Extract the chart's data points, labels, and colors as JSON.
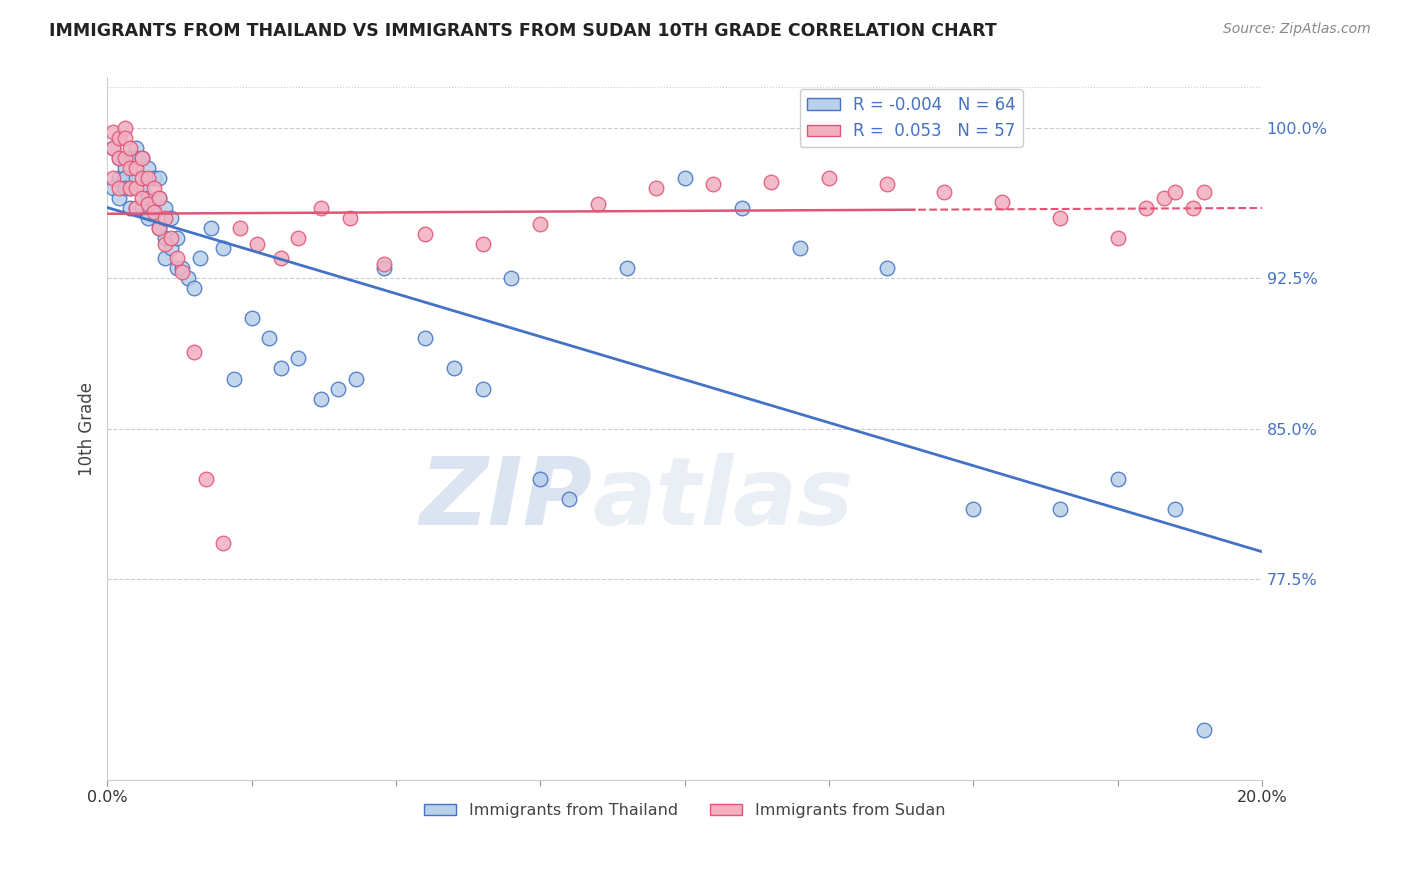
{
  "title": "IMMIGRANTS FROM THAILAND VS IMMIGRANTS FROM SUDAN 10TH GRADE CORRELATION CHART",
  "source": "Source: ZipAtlas.com",
  "ylabel": "10th Grade",
  "x_range": [
    0.0,
    0.2
  ],
  "y_range": [
    0.675,
    1.025
  ],
  "legend_r_thailand": "-0.004",
  "legend_n_thailand": "64",
  "legend_r_sudan": "0.053",
  "legend_n_sudan": "57",
  "thailand_color": "#b8d0e8",
  "sudan_color": "#f2b0c0",
  "thailand_line_color": "#4472c4",
  "sudan_line_color": "#e05575",
  "watermark_zip": "ZIP",
  "watermark_atlas": "atlas",
  "thailand_x": [
    0.001,
    0.001,
    0.002,
    0.002,
    0.002,
    0.003,
    0.003,
    0.003,
    0.004,
    0.004,
    0.004,
    0.005,
    0.005,
    0.005,
    0.005,
    0.006,
    0.006,
    0.006,
    0.007,
    0.007,
    0.007,
    0.008,
    0.008,
    0.009,
    0.009,
    0.009,
    0.01,
    0.01,
    0.01,
    0.011,
    0.011,
    0.012,
    0.012,
    0.013,
    0.014,
    0.015,
    0.016,
    0.018,
    0.02,
    0.022,
    0.025,
    0.028,
    0.03,
    0.033,
    0.037,
    0.04,
    0.043,
    0.048,
    0.055,
    0.06,
    0.065,
    0.07,
    0.075,
    0.08,
    0.09,
    0.1,
    0.11,
    0.12,
    0.135,
    0.15,
    0.165,
    0.175,
    0.185,
    0.19
  ],
  "thailand_y": [
    0.99,
    0.97,
    0.985,
    0.975,
    0.965,
    0.98,
    0.975,
    0.97,
    0.985,
    0.97,
    0.96,
    0.99,
    0.985,
    0.975,
    0.96,
    0.985,
    0.97,
    0.96,
    0.98,
    0.965,
    0.955,
    0.975,
    0.96,
    0.975,
    0.965,
    0.95,
    0.96,
    0.945,
    0.935,
    0.955,
    0.94,
    0.945,
    0.93,
    0.93,
    0.925,
    0.92,
    0.935,
    0.95,
    0.94,
    0.875,
    0.905,
    0.895,
    0.88,
    0.885,
    0.865,
    0.87,
    0.875,
    0.93,
    0.895,
    0.88,
    0.87,
    0.925,
    0.825,
    0.815,
    0.93,
    0.975,
    0.96,
    0.94,
    0.93,
    0.81,
    0.81,
    0.825,
    0.81,
    0.7
  ],
  "sudan_x": [
    0.001,
    0.001,
    0.001,
    0.002,
    0.002,
    0.002,
    0.003,
    0.003,
    0.003,
    0.004,
    0.004,
    0.004,
    0.005,
    0.005,
    0.005,
    0.006,
    0.006,
    0.006,
    0.007,
    0.007,
    0.008,
    0.008,
    0.009,
    0.009,
    0.01,
    0.01,
    0.011,
    0.012,
    0.013,
    0.015,
    0.017,
    0.02,
    0.023,
    0.026,
    0.03,
    0.033,
    0.037,
    0.042,
    0.048,
    0.055,
    0.065,
    0.075,
    0.085,
    0.095,
    0.105,
    0.115,
    0.125,
    0.135,
    0.145,
    0.155,
    0.165,
    0.175,
    0.18,
    0.183,
    0.185,
    0.188,
    0.19
  ],
  "sudan_y": [
    0.998,
    0.99,
    0.975,
    0.995,
    0.985,
    0.97,
    1.0,
    0.995,
    0.985,
    0.99,
    0.98,
    0.97,
    0.98,
    0.97,
    0.96,
    0.985,
    0.975,
    0.965,
    0.975,
    0.962,
    0.97,
    0.958,
    0.965,
    0.95,
    0.955,
    0.942,
    0.945,
    0.935,
    0.928,
    0.888,
    0.825,
    0.793,
    0.95,
    0.942,
    0.935,
    0.945,
    0.96,
    0.955,
    0.932,
    0.947,
    0.942,
    0.952,
    0.962,
    0.97,
    0.972,
    0.973,
    0.975,
    0.972,
    0.968,
    0.963,
    0.955,
    0.945,
    0.96,
    0.965,
    0.968,
    0.96,
    0.968
  ],
  "y_ticks": [
    0.775,
    0.85,
    0.925,
    1.0
  ],
  "y_tick_labels": [
    "77.5%",
    "85.0%",
    "92.5%",
    "100.0%"
  ]
}
